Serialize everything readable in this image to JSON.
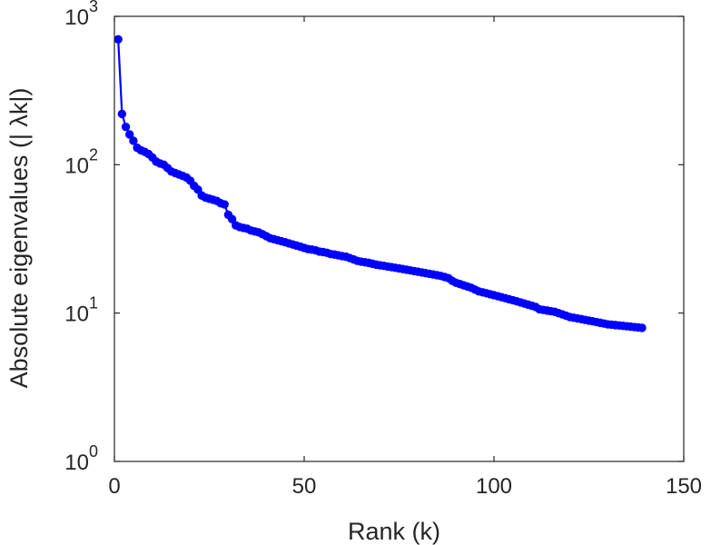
{
  "chart_data": {
    "type": "scatter",
    "x_label": "Rank (k)",
    "y_label": "Absolute eigenvalues (|   λk|)",
    "x_ticks": [
      "0",
      "50",
      "100",
      "150"
    ],
    "y_ticks": [
      {
        "base": "10",
        "exp": "0"
      },
      {
        "base": "10",
        "exp": "1"
      },
      {
        "base": "10",
        "exp": "2"
      },
      {
        "base": "10",
        "exp": "3"
      }
    ],
    "x_range": [
      0,
      150
    ],
    "y_range": [
      1,
      1000
    ],
    "y_scale": "log",
    "grid": false,
    "legend": "none",
    "marker_color": "#0000ff",
    "series": [
      {
        "x": [
          1,
          2,
          3,
          4,
          5,
          6,
          7,
          8,
          9,
          10,
          11,
          12,
          13,
          14,
          15,
          16,
          17,
          18,
          19,
          20,
          21,
          22,
          23,
          24,
          25,
          26,
          27,
          28,
          29,
          30,
          31,
          32,
          33,
          34,
          35,
          36,
          37,
          38,
          39,
          40,
          41,
          42,
          43,
          44,
          45,
          46,
          47,
          48,
          49,
          50,
          51,
          52,
          53,
          54,
          55,
          56,
          57,
          58,
          59,
          60,
          61,
          62,
          63,
          64,
          65,
          66,
          67,
          68,
          69,
          70,
          71,
          72,
          73,
          74,
          75,
          76,
          77,
          78,
          79,
          80,
          81,
          82,
          83,
          84,
          85,
          86,
          87,
          88,
          89,
          90,
          91,
          92,
          93,
          94,
          95,
          96,
          97,
          98,
          99,
          100,
          101,
          102,
          103,
          104,
          105,
          106,
          107,
          108,
          109,
          110,
          111,
          112,
          113,
          114,
          115,
          116,
          117,
          118,
          119,
          120,
          121,
          122,
          123,
          124,
          125,
          126,
          127,
          128,
          129,
          130,
          131,
          132,
          133,
          134,
          135,
          136,
          137,
          138,
          139
        ],
        "y": [
          700,
          220,
          180,
          160,
          145,
          130,
          125,
          122,
          118,
          112,
          105,
          102,
          100,
          95,
          90,
          88,
          86,
          84,
          82,
          78,
          72,
          68,
          62,
          60,
          59,
          58,
          57,
          55,
          54,
          46,
          43,
          39,
          38,
          37.5,
          37,
          36,
          35.5,
          35,
          34,
          33,
          32,
          31.5,
          31,
          30.5,
          30,
          29.5,
          29,
          28.5,
          28,
          27.5,
          27,
          26.8,
          26.5,
          26,
          25.8,
          25.5,
          25,
          24.8,
          24.5,
          24.2,
          24,
          23.5,
          23,
          22.5,
          22.2,
          22,
          21.8,
          21.5,
          21.2,
          21,
          20.8,
          20.6,
          20.4,
          20.2,
          20,
          19.8,
          19.6,
          19.4,
          19.2,
          19,
          18.8,
          18.6,
          18.4,
          18.2,
          18,
          17.8,
          17.5,
          17.2,
          16.5,
          16,
          15.7,
          15.4,
          15.1,
          14.8,
          14.4,
          14,
          13.8,
          13.6,
          13.4,
          13.2,
          13,
          12.8,
          12.6,
          12.4,
          12.2,
          12,
          11.8,
          11.6,
          11.4,
          11.2,
          11,
          10.6,
          10.5,
          10.4,
          10.3,
          10.2,
          10,
          9.8,
          9.6,
          9.4,
          9.3,
          9.2,
          9.1,
          9,
          8.9,
          8.8,
          8.7,
          8.6,
          8.5,
          8.4,
          8.35,
          8.3,
          8.25,
          8.2,
          8.15,
          8.1,
          8.05,
          8,
          7.95
        ]
      }
    ]
  }
}
